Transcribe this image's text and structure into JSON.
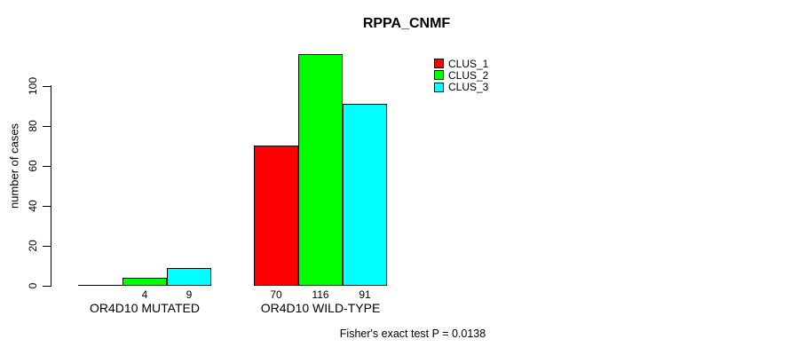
{
  "chart_data": {
    "type": "bar",
    "title": "RPPA_CNMF",
    "ylabel": "number of cases",
    "xlabel": "",
    "ylim": [
      0,
      100
    ],
    "yticks": [
      0,
      20,
      40,
      60,
      80,
      100
    ],
    "grid": false,
    "legend_position": "top-right",
    "series": [
      {
        "name": "CLUS_1",
        "color": "#ff0000"
      },
      {
        "name": "CLUS_2",
        "color": "#00ff00"
      },
      {
        "name": "CLUS_3",
        "color": "#00ffff"
      }
    ],
    "categories": [
      "OR4D10 MUTATED",
      "OR4D10 WILD-TYPE"
    ],
    "groups": [
      {
        "label": "OR4D10 MUTATED",
        "values": [
          0,
          4,
          9
        ],
        "bar_labels": [
          "",
          "4",
          "9"
        ]
      },
      {
        "label": "OR4D10 WILD-TYPE",
        "values": [
          70,
          116,
          91
        ],
        "bar_labels": [
          "70",
          "116",
          "91"
        ]
      }
    ],
    "bar_border_color": "#000000",
    "axis_color": "#000000",
    "background": "#ffffff",
    "footnote": "Fisher's exact test P = 0.0138"
  }
}
